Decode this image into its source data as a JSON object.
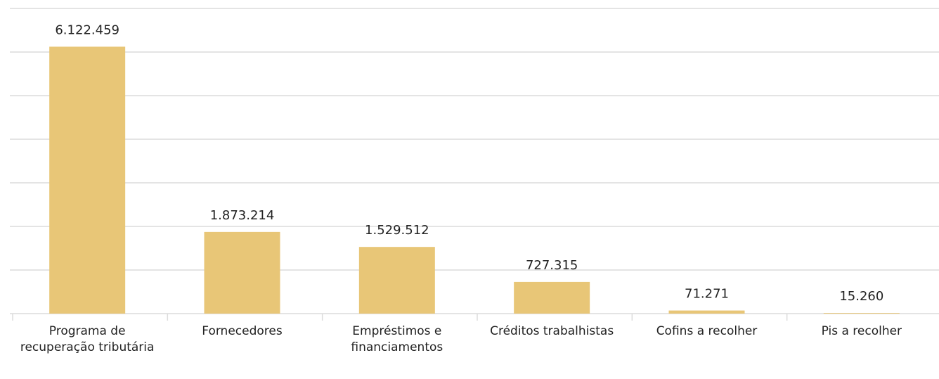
{
  "chart_data": {
    "type": "bar",
    "categories": [
      "Programa de recuperação tributária",
      "Fornecedores",
      "Empréstimos e financiamentos",
      "Créditos trabalhistas",
      "Cofins a recolher",
      "Pis a recolher"
    ],
    "values": [
      6122459,
      1873214,
      1529512,
      727315,
      71271,
      15260
    ],
    "value_labels": [
      "6.122.459",
      "1.873.214",
      "1.529.512",
      "727.315",
      "71.271",
      "15.260"
    ],
    "color": "#e8c677",
    "ylim": [
      0,
      7000000
    ],
    "yticks": [
      0,
      1000000,
      2000000,
      3000000,
      4000000,
      5000000,
      6000000,
      7000000
    ],
    "grid": true
  }
}
